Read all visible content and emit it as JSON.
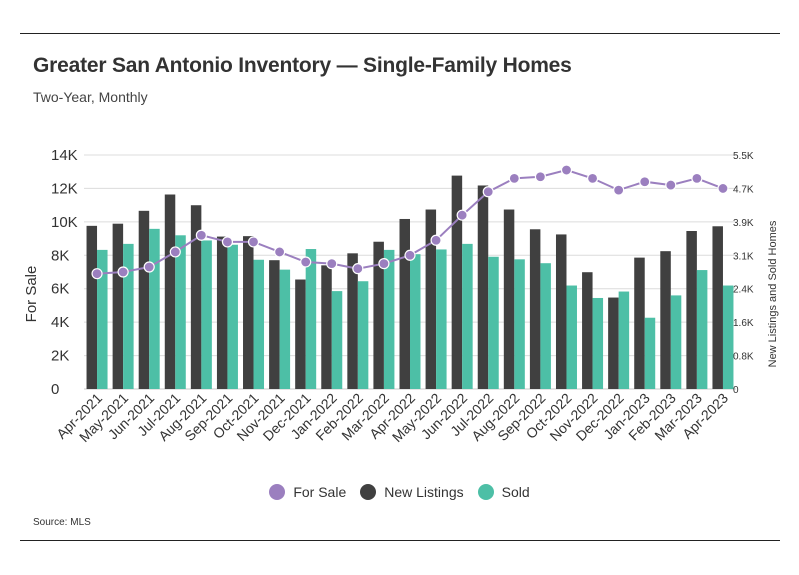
{
  "header": {
    "title": "Greater San Antonio Inventory — Single-Family Homes",
    "subtitle": "Two-Year, Monthly"
  },
  "legend": [
    {
      "label": "For Sale",
      "color": "#9b7fbf"
    },
    {
      "label": "New Listings",
      "color": "#404040"
    },
    {
      "label": "Sold",
      "color": "#4dbfa6"
    }
  ],
  "source": "Source: MLS",
  "chart_data": {
    "type": "bar",
    "title": "Greater San Antonio Inventory — Single-Family Homes",
    "subtitle": "Two-Year, Monthly",
    "categories": [
      "Apr-2021",
      "May-2021",
      "Jun-2021",
      "Jul-2021",
      "Aug-2021",
      "Sep-2021",
      "Oct-2021",
      "Nov-2021",
      "Dec-2021",
      "Jan-2022",
      "Feb-2022",
      "Mar-2022",
      "Apr-2022",
      "May-2022",
      "Jun-2022",
      "Jul-2022",
      "Aug-2022",
      "Sep-2022",
      "Oct-2022",
      "Nov-2022",
      "Dec-2022",
      "Jan-2023",
      "Feb-2023",
      "Mar-2023",
      "Apr-2023"
    ],
    "ylabel": "For Sale",
    "y2label": "New Listings and Sold Homes",
    "yticks": [
      "0",
      "2K",
      "4K",
      "6K",
      "8K",
      "10K",
      "12K",
      "14K"
    ],
    "y2ticks": [
      "0",
      "0.8K",
      "1.6K",
      "2.4K",
      "3.1K",
      "3.9K",
      "4.7K",
      "5.5K"
    ],
    "ylim": [
      0,
      14000
    ],
    "y2lim": [
      0,
      5450
    ],
    "grid": true,
    "legend_position": "bottom",
    "series": [
      {
        "name": "For Sale",
        "type": "line",
        "axis": "left",
        "color": "#9b7fbf",
        "values": [
          6900,
          7000,
          7300,
          8200,
          9200,
          8800,
          8800,
          8200,
          7600,
          7500,
          7200,
          7500,
          8000,
          8900,
          10400,
          11800,
          12600,
          12700,
          13100,
          12600,
          11900,
          12400,
          12200,
          12600,
          12000
        ]
      },
      {
        "name": "New Listings",
        "type": "bar",
        "axis": "right",
        "color": "#404040",
        "values": [
          3800,
          3850,
          4150,
          4530,
          4280,
          3550,
          3560,
          3000,
          2550,
          2880,
          3160,
          3430,
          3960,
          4180,
          4970,
          4740,
          4180,
          3720,
          3600,
          2720,
          2130,
          3060,
          3210,
          3680,
          3790
        ]
      },
      {
        "name": "Sold",
        "type": "bar",
        "axis": "right",
        "color": "#4dbfa6",
        "values": [
          3240,
          3380,
          3730,
          3580,
          3460,
          3360,
          3010,
          2780,
          3260,
          2280,
          2510,
          3240,
          3140,
          3250,
          3380,
          3080,
          3020,
          2930,
          2410,
          2120,
          2270,
          1660,
          2180,
          2770,
          2410
        ]
      }
    ]
  }
}
